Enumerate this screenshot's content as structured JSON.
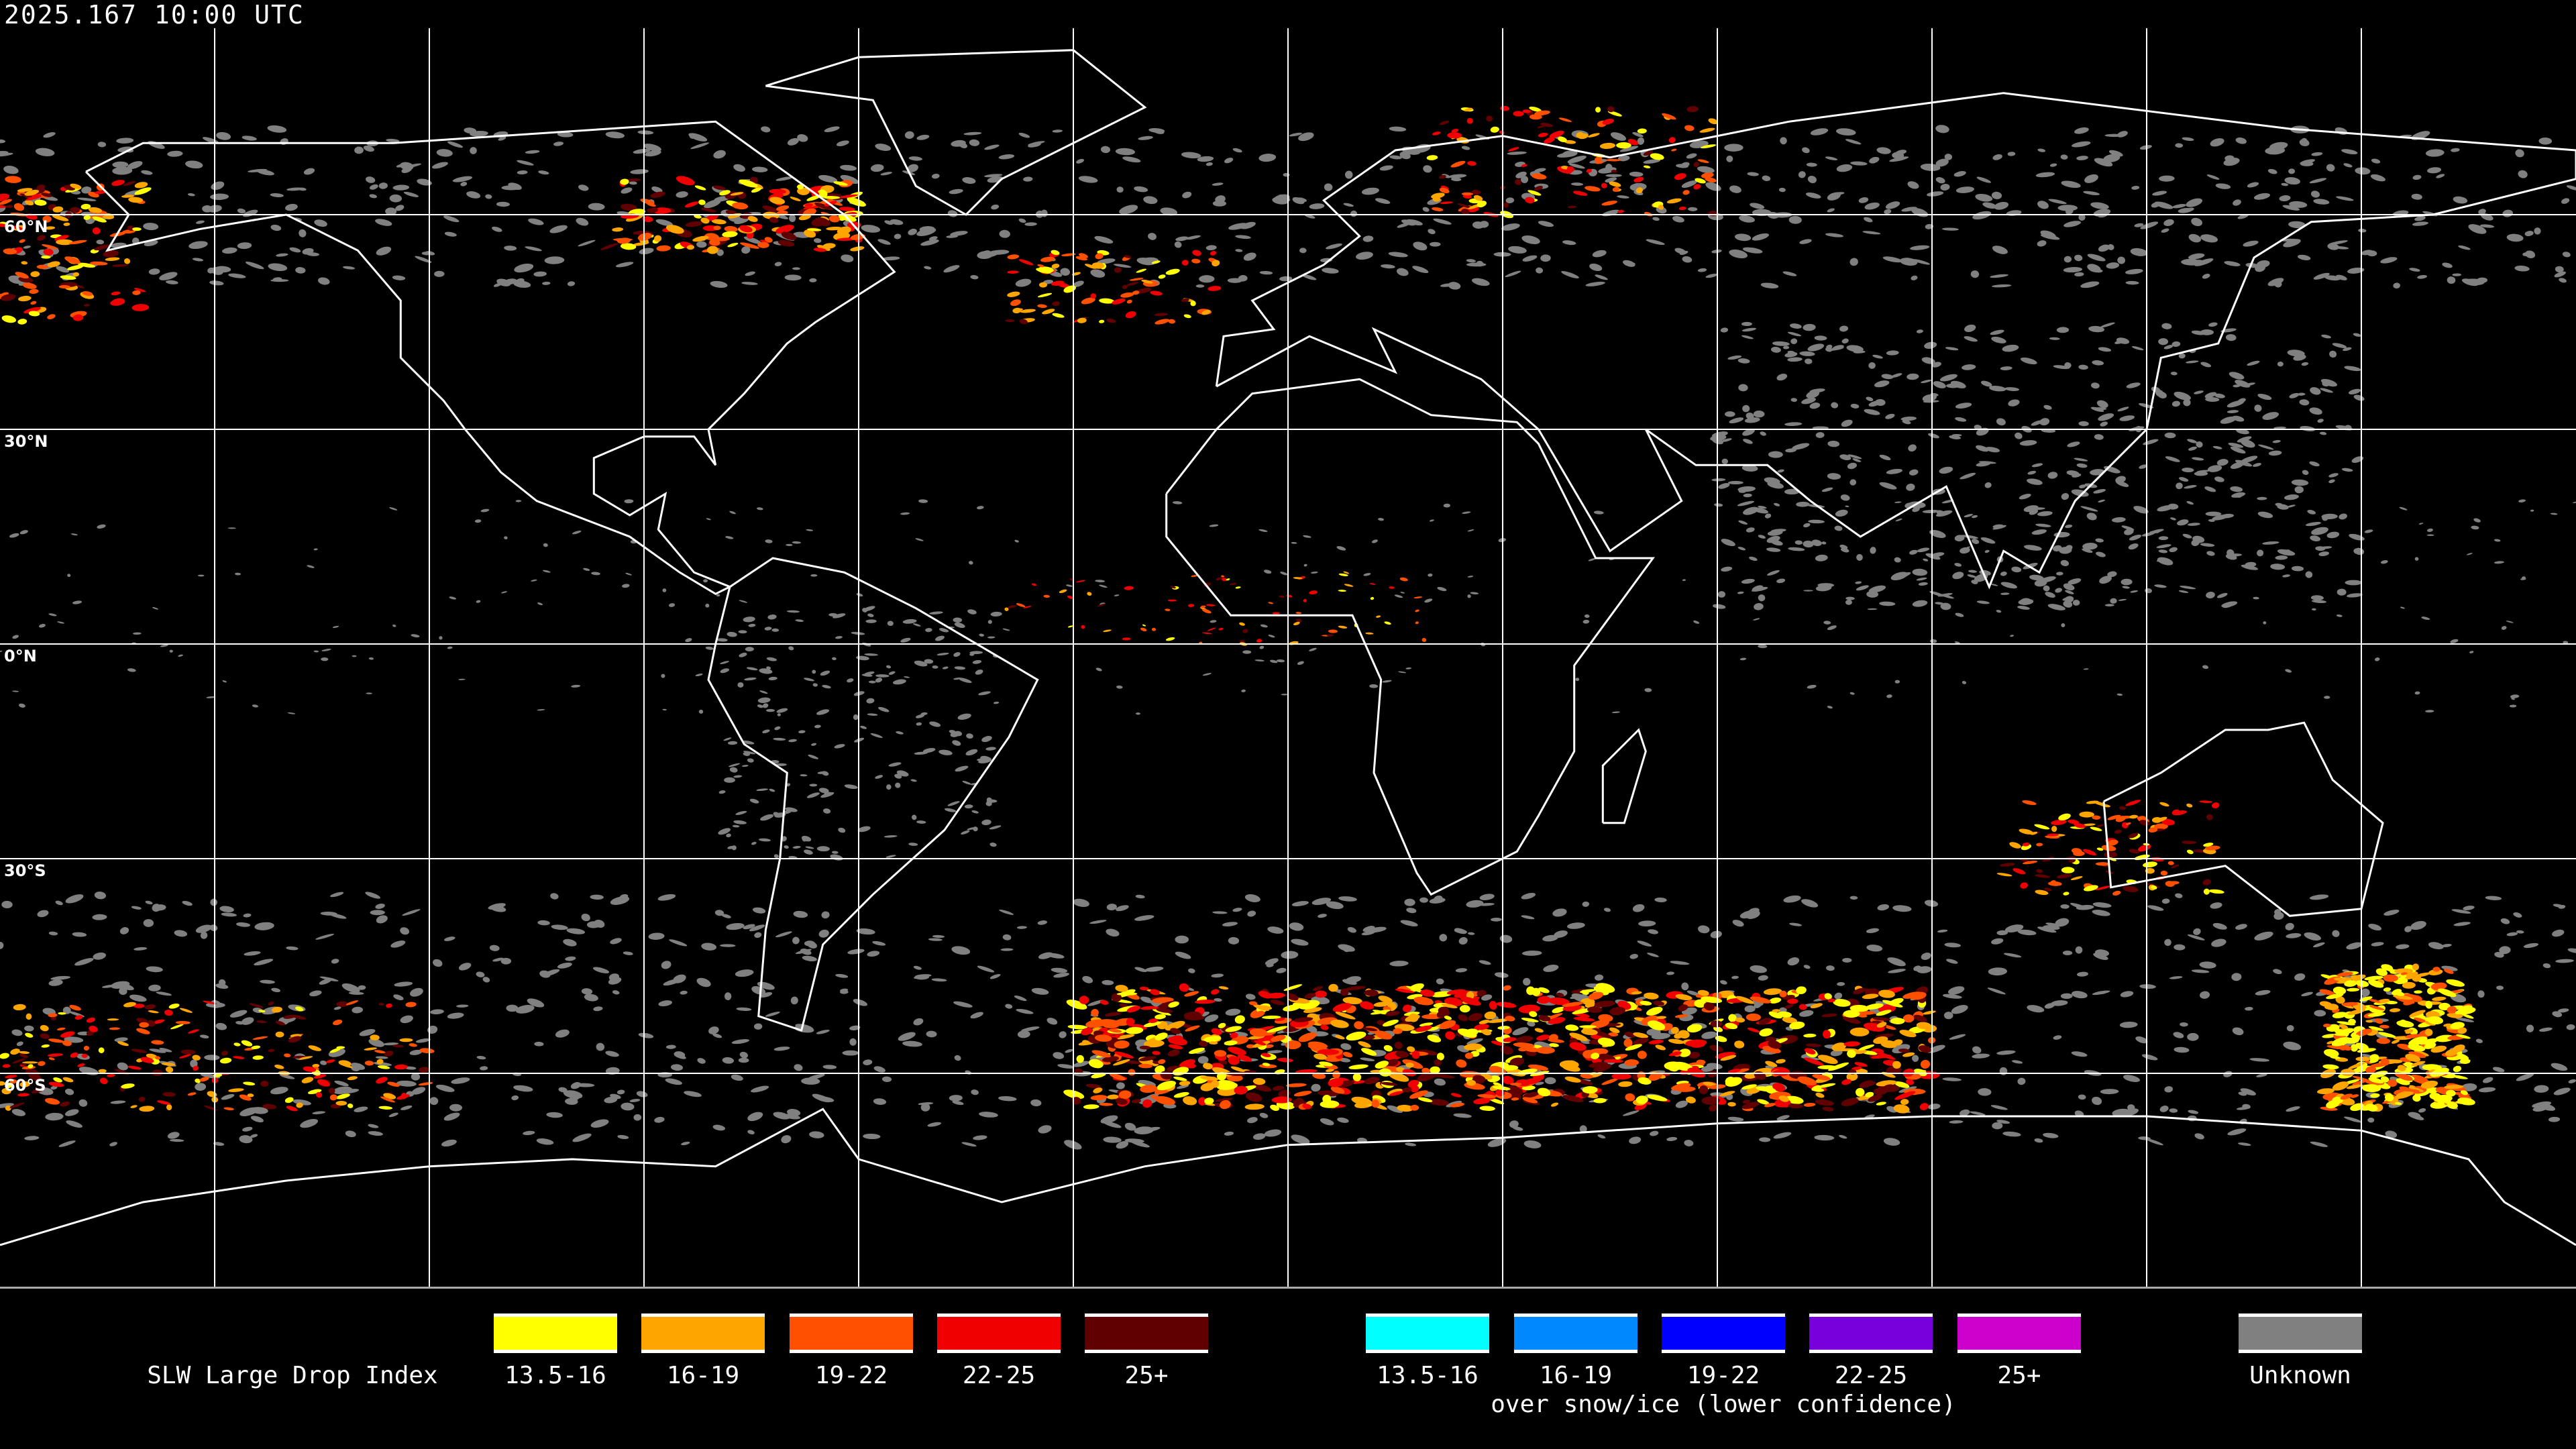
{
  "header": {
    "timestamp": "2025.167 10:00 UTC"
  },
  "map": {
    "projection": "equirectangular",
    "lon_range": [
      -180,
      180
    ],
    "lat_range": [
      -90,
      90
    ],
    "graticule_step_deg": 30,
    "lat_labels": [
      "60°N",
      "30°N",
      "0°N",
      "30°S",
      "60°S"
    ]
  },
  "legend": {
    "title": "SLW Large Drop Index",
    "primary": [
      {
        "label": "13.5-16",
        "color": "#ffff00"
      },
      {
        "label": "16-19",
        "color": "#ffa500"
      },
      {
        "label": "19-22",
        "color": "#ff5000"
      },
      {
        "label": "22-25",
        "color": "#f00000"
      },
      {
        "label": "25+",
        "color": "#600000"
      }
    ],
    "snow_ice": [
      {
        "label": "13.5-16",
        "color": "#00ffff"
      },
      {
        "label": "16-19",
        "color": "#0088ff"
      },
      {
        "label": "19-22",
        "color": "#0000ff"
      },
      {
        "label": "22-25",
        "color": "#7700dd"
      },
      {
        "label": "25+",
        "color": "#cc00cc"
      }
    ],
    "snow_ice_caption": "over snow/ice (lower confidence)",
    "unknown": {
      "label": "Unknown",
      "color": "#808080"
    }
  }
}
